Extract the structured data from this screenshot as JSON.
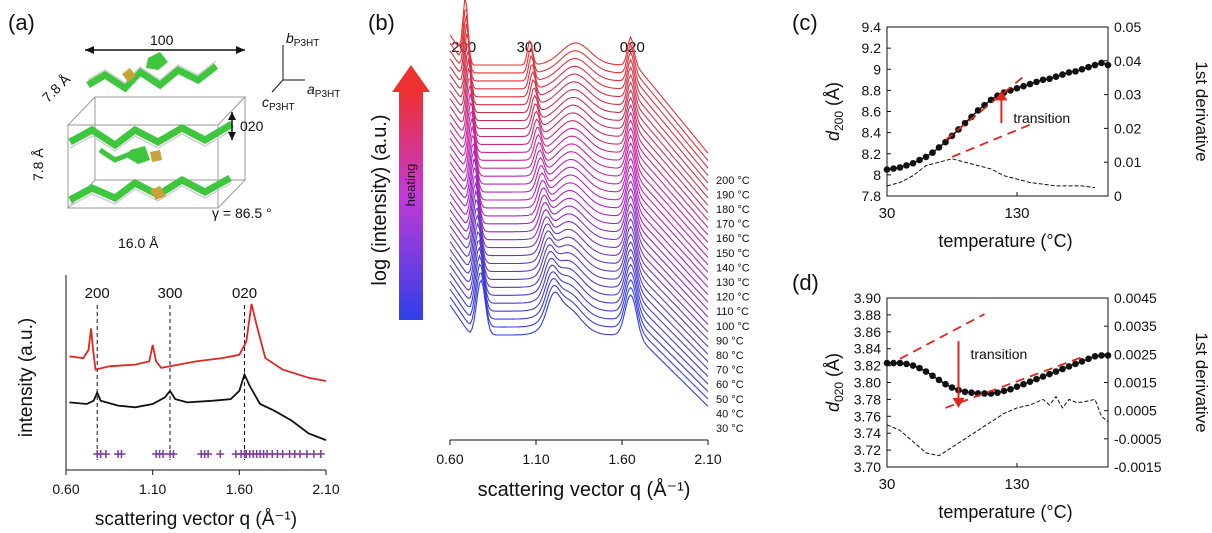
{
  "panels": {
    "a": "(a)",
    "b": "(b)",
    "c": "(c)",
    "d": "(d)"
  },
  "structure": {
    "axis_labels": {
      "b": "b",
      "a": "a",
      "c": "c",
      "sub": "P3HT"
    },
    "dim_top": "100",
    "dim_left": "7.8 Å",
    "dim_left2": "7.8 Å",
    "dim_020": "020",
    "gamma": "γ = 86.5 °",
    "dim_bottom": "16.0 Å",
    "colors": {
      "ring": "#3ec63e",
      "sulfur": "#c9a23a",
      "hydrogen": "#d0d0d0",
      "box": "#9a9a9a"
    }
  },
  "chart_data": [
    {
      "id": "a-bottom",
      "type": "line",
      "xlabel": "scattering vector q (Å⁻¹)",
      "ylabel": "intensity (a.u.)",
      "x_ticks": [
        "0.60",
        "1.10",
        "1.60",
        "2.10"
      ],
      "xlim": [
        0.6,
        2.1
      ],
      "peak_labels": [
        {
          "label": "200",
          "q": 0.78
        },
        {
          "label": "300",
          "q": 1.2
        },
        {
          "label": "020",
          "q": 1.63
        }
      ],
      "series": [
        {
          "color": "#e0261f",
          "points": [
            [
              0.62,
              0.63
            ],
            [
              0.7,
              0.62
            ],
            [
              0.73,
              0.67
            ],
            [
              0.745,
              0.8
            ],
            [
              0.755,
              0.68
            ],
            [
              0.77,
              0.55
            ],
            [
              0.85,
              0.57
            ],
            [
              1.0,
              0.58
            ],
            [
              1.08,
              0.6
            ],
            [
              1.1,
              0.7
            ],
            [
              1.12,
              0.6
            ],
            [
              1.15,
              0.56
            ],
            [
              1.2,
              0.57
            ],
            [
              1.35,
              0.6
            ],
            [
              1.5,
              0.62
            ],
            [
              1.6,
              0.64
            ],
            [
              1.64,
              0.72
            ],
            [
              1.67,
              0.95
            ],
            [
              1.7,
              0.82
            ],
            [
              1.75,
              0.62
            ],
            [
              1.85,
              0.55
            ],
            [
              2.0,
              0.5
            ],
            [
              2.1,
              0.48
            ]
          ]
        },
        {
          "color": "#111111",
          "points": [
            [
              0.62,
              0.35
            ],
            [
              0.72,
              0.34
            ],
            [
              0.76,
              0.36
            ],
            [
              0.78,
              0.41
            ],
            [
              0.8,
              0.36
            ],
            [
              0.9,
              0.33
            ],
            [
              1.0,
              0.32
            ],
            [
              1.1,
              0.34
            ],
            [
              1.17,
              0.38
            ],
            [
              1.2,
              0.42
            ],
            [
              1.23,
              0.37
            ],
            [
              1.3,
              0.35
            ],
            [
              1.45,
              0.36
            ],
            [
              1.55,
              0.37
            ],
            [
              1.6,
              0.42
            ],
            [
              1.63,
              0.52
            ],
            [
              1.66,
              0.45
            ],
            [
              1.72,
              0.34
            ],
            [
              1.8,
              0.3
            ],
            [
              1.9,
              0.24
            ],
            [
              2.0,
              0.16
            ],
            [
              2.1,
              0.12
            ]
          ]
        }
      ],
      "markers_q": [
        0.78,
        0.8,
        0.83,
        0.9,
        0.92,
        1.12,
        1.14,
        1.16,
        1.2,
        1.22,
        1.38,
        1.4,
        1.42,
        1.49,
        1.58,
        1.61,
        1.63,
        1.64,
        1.66,
        1.68,
        1.7,
        1.72,
        1.74,
        1.76,
        1.79,
        1.82,
        1.85,
        1.89,
        1.92,
        1.95,
        1.99,
        2.03,
        2.07
      ],
      "marker_color": "#7a3aa0"
    },
    {
      "id": "b",
      "type": "line",
      "xlabel": "scattering vector q (Å⁻¹)",
      "ylabel": "log (intensity) (a.u.)",
      "arrow_label": "heating",
      "x_ticks": [
        "0.60",
        "1.10",
        "1.60",
        "2.10"
      ],
      "xlim": [
        0.6,
        2.1
      ],
      "peak_labels": [
        {
          "label": "200",
          "q": 0.68
        },
        {
          "label": "300",
          "q": 1.06
        },
        {
          "label": "020",
          "q": 1.66
        }
      ],
      "temperatures": [
        "30 °C",
        "40 °C",
        "50 °C",
        "60 °C",
        "70 °C",
        "80 °C",
        "90 °C",
        "100 °C",
        "110 °C",
        "120 °C",
        "130 °C",
        "140 °C",
        "150 °C",
        "160 °C",
        "170 °C",
        "180 °C",
        "190 °C",
        "200 °C"
      ],
      "n_curves": 35,
      "color_start": "#2f3fe8",
      "color_end": "#ee3030"
    },
    {
      "id": "c",
      "type": "line",
      "xlabel": "temperature (°C)",
      "ylabel": "d200 (Å)",
      "ylabel_main": "d",
      "ylabel_sub": "200",
      "ylabel_unit": " (Å)",
      "y2label": "1st derivative",
      "x_ticks": [
        "30",
        "130"
      ],
      "xlim": [
        30,
        200
      ],
      "y_ticks": [
        "7.8",
        "8",
        "8.2",
        "8.4",
        "8.6",
        "8.8",
        "9",
        "9.2",
        "9.4"
      ],
      "ylim": [
        7.8,
        9.4
      ],
      "y2_ticks": [
        "0",
        "0.01",
        "0.02",
        "0.03",
        "0.04",
        "0.05"
      ],
      "y2lim": [
        0,
        0.05
      ],
      "annotation": "transition",
      "d_series": {
        "x": [
          30,
          35,
          40,
          45,
          50,
          55,
          60,
          65,
          70,
          75,
          80,
          85,
          90,
          95,
          100,
          105,
          110,
          115,
          120,
          125,
          130,
          135,
          140,
          145,
          150,
          155,
          160,
          165,
          170,
          175,
          180,
          185,
          190,
          195,
          200
        ],
        "y": [
          8.05,
          8.06,
          8.07,
          8.09,
          8.11,
          8.14,
          8.17,
          8.21,
          8.26,
          8.31,
          8.37,
          8.43,
          8.49,
          8.55,
          8.61,
          8.66,
          8.71,
          8.75,
          8.78,
          8.8,
          8.82,
          8.84,
          8.86,
          8.88,
          8.9,
          8.91,
          8.93,
          8.95,
          8.97,
          8.98,
          9.0,
          9.02,
          9.04,
          9.06,
          9.04
        ]
      },
      "deriv_series": {
        "x": [
          30,
          40,
          50,
          60,
          70,
          80,
          90,
          100,
          110,
          120,
          130,
          140,
          150,
          160,
          170,
          180,
          190
        ],
        "y": [
          0.003,
          0.004,
          0.006,
          0.009,
          0.01,
          0.011,
          0.01,
          0.009,
          0.008,
          0.006,
          0.005,
          0.004,
          0.0035,
          0.003,
          0.003,
          0.003,
          0.0025
        ]
      }
    },
    {
      "id": "d",
      "type": "line",
      "xlabel": "temperature (°C)",
      "ylabel": "d020 (Å)",
      "ylabel_main": "d",
      "ylabel_sub": "020",
      "ylabel_unit": " (Å)",
      "y2label": "1st derivative",
      "x_ticks": [
        "30",
        "130"
      ],
      "xlim": [
        30,
        200
      ],
      "y_ticks": [
        "3.70",
        "3.72",
        "3.74",
        "3.76",
        "3.78",
        "3.80",
        "3.82",
        "3.84",
        "3.86",
        "3.88",
        "3.90"
      ],
      "ylim": [
        3.7,
        3.9
      ],
      "y2_ticks": [
        "-0.0015",
        "-0.0005",
        "0.0005",
        "0.0015",
        "0.0025",
        "0.0035",
        "0.0045"
      ],
      "y2lim": [
        -0.0015,
        0.0045
      ],
      "annotation": "transition",
      "d_series": {
        "x": [
          30,
          35,
          40,
          45,
          50,
          55,
          60,
          65,
          70,
          75,
          80,
          85,
          90,
          95,
          100,
          105,
          110,
          115,
          120,
          125,
          130,
          135,
          140,
          145,
          150,
          155,
          160,
          165,
          170,
          175,
          180,
          185,
          190,
          195,
          200
        ],
        "y": [
          3.823,
          3.823,
          3.823,
          3.822,
          3.82,
          3.817,
          3.813,
          3.808,
          3.803,
          3.798,
          3.794,
          3.791,
          3.789,
          3.788,
          3.787,
          3.787,
          3.787,
          3.788,
          3.79,
          3.792,
          3.795,
          3.798,
          3.801,
          3.804,
          3.807,
          3.81,
          3.813,
          3.816,
          3.819,
          3.822,
          3.825,
          3.828,
          3.831,
          3.832,
          3.832
        ]
      },
      "deriv_series": {
        "x": [
          30,
          40,
          50,
          60,
          70,
          80,
          90,
          100,
          110,
          120,
          130,
          140,
          150,
          155,
          160,
          165,
          170,
          175,
          180,
          190,
          195,
          200
        ],
        "y": [
          0.0,
          -0.0002,
          -0.0006,
          -0.001,
          -0.0011,
          -0.0008,
          -0.0005,
          -0.0002,
          0.0001,
          0.0004,
          0.0006,
          0.0007,
          0.0009,
          0.0007,
          0.001,
          0.0006,
          0.0009,
          0.0008,
          0.0008,
          0.0009,
          0.0003,
          0.0001
        ]
      }
    }
  ]
}
